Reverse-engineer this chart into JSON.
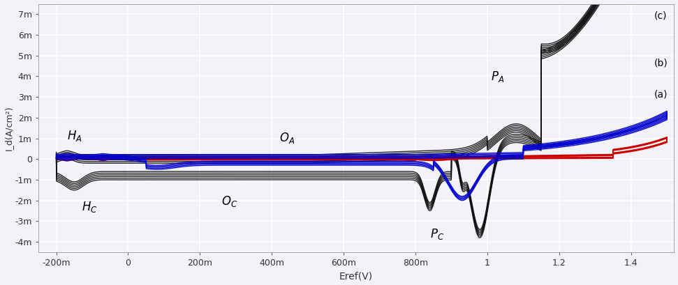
{
  "xlim": [
    -0.25,
    1.52
  ],
  "ylim": [
    -0.0045,
    0.0075
  ],
  "xlabel": "Eref(V)",
  "ylabel": "I_d(A/cm²)",
  "xticks": [
    -0.2,
    0.0,
    0.2,
    0.4,
    0.6,
    0.8,
    1.0,
    1.2,
    1.4
  ],
  "xtick_labels": [
    "-200m",
    "0",
    "200m",
    "400m",
    "600m",
    "800m",
    "1",
    "1.2",
    "1.4"
  ],
  "yticks": [
    -0.004,
    -0.003,
    -0.002,
    -0.001,
    0.0,
    0.001,
    0.002,
    0.003,
    0.004,
    0.005,
    0.006,
    0.007
  ],
  "ytick_labels": [
    "-4m",
    "-3m",
    "-2m",
    "-1m",
    "0",
    "1m",
    "2m",
    "3m",
    "4m",
    "5m",
    "6m",
    "7m"
  ],
  "background_color": "#f2f2f8",
  "grid_color": "#ffffff",
  "label_a": "(a)",
  "label_b": "(b)",
  "label_c": "(c)",
  "color_a": "#cc0000",
  "color_b": "#0000cc",
  "color_c": "#111111",
  "n_scans_a": 5,
  "n_scans_b": 5,
  "n_scans_c": 6
}
